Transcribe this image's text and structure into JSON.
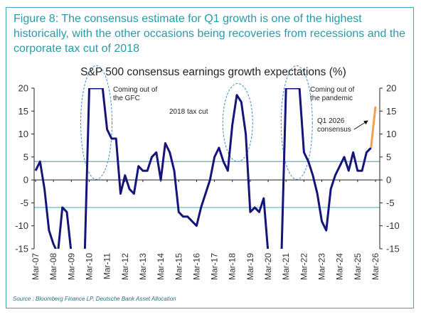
{
  "figure_caption": "Figure 8: The consensus estimate for Q1 growth is one of the highest historically, with the other occasions being recoveries from recessions and the corporate tax cut of 2018",
  "source": "Source : Bloomberg Finance LP, Deutsche Bank Asset Allocation",
  "colors": {
    "accent": "#2a9aaa",
    "series": "#14147a",
    "estimate": "#f0a050",
    "refline": "#5bbfcf",
    "ellipse": "#3b8fc7"
  },
  "chart_data": {
    "type": "line",
    "title": "S&P 500 consensus earnings growth expectations (%)",
    "ylim": [
      -15,
      20
    ],
    "yticks": [
      "20",
      "15",
      "10",
      "5",
      "0",
      "-5",
      "-10",
      "-15"
    ],
    "xticks": [
      "Mar-07",
      "Mar-08",
      "Mar-09",
      "Mar-10",
      "Mar-11",
      "Mar-12",
      "Mar-13",
      "Mar-14",
      "Mar-15",
      "Mar-16",
      "Mar-17",
      "Mar-18",
      "Mar-19",
      "Mar-20",
      "Mar-21",
      "Mar-22",
      "Mar-23",
      "Mar-24",
      "Mar-25",
      "Mar-26"
    ],
    "reference_lines": [
      4,
      -6
    ],
    "annotations": [
      {
        "text_lines": [
          "Coming out of",
          "the GFC"
        ]
      },
      {
        "text_lines": [
          "2018 tax cut"
        ]
      },
      {
        "text_lines": [
          "Coming out of",
          "the pandemic"
        ]
      },
      {
        "text_lines": [
          "Q1 2026",
          "consensus"
        ]
      }
    ],
    "series": [
      {
        "values": [
          [
            2007.0,
            2
          ],
          [
            2007.25,
            4
          ],
          [
            2007.5,
            -2
          ],
          [
            2007.75,
            -11
          ],
          [
            2008.0,
            -14
          ],
          [
            2008.25,
            -16
          ],
          [
            2008.5,
            -6
          ],
          [
            2008.75,
            -7
          ],
          [
            2009.0,
            -16
          ],
          [
            2009.25,
            -16
          ],
          [
            2009.5,
            -16
          ],
          [
            2009.75,
            -16
          ],
          [
            2010.0,
            20
          ],
          [
            2010.25,
            20
          ],
          [
            2010.5,
            20
          ],
          [
            2010.75,
            20
          ],
          [
            2011.0,
            11
          ],
          [
            2011.25,
            9
          ],
          [
            2011.5,
            9
          ],
          [
            2011.75,
            -3
          ],
          [
            2012.0,
            1
          ],
          [
            2012.25,
            -2
          ],
          [
            2012.5,
            -3
          ],
          [
            2012.75,
            3
          ],
          [
            2013.0,
            2
          ],
          [
            2013.25,
            2
          ],
          [
            2013.5,
            5
          ],
          [
            2013.75,
            6
          ],
          [
            2014.0,
            0
          ],
          [
            2014.25,
            8
          ],
          [
            2014.5,
            6
          ],
          [
            2014.75,
            2
          ],
          [
            2015.0,
            -7
          ],
          [
            2015.25,
            -8
          ],
          [
            2015.5,
            -8
          ],
          [
            2015.75,
            -9
          ],
          [
            2016.0,
            -10
          ],
          [
            2016.25,
            -6
          ],
          [
            2016.5,
            -3
          ],
          [
            2016.75,
            0
          ],
          [
            2017.0,
            5
          ],
          [
            2017.25,
            7
          ],
          [
            2017.5,
            4
          ],
          [
            2017.75,
            2
          ],
          [
            2018.0,
            12
          ],
          [
            2018.25,
            18.5
          ],
          [
            2018.5,
            17
          ],
          [
            2018.75,
            10
          ],
          [
            2019.0,
            -7
          ],
          [
            2019.25,
            -6
          ],
          [
            2019.5,
            -7
          ],
          [
            2019.75,
            -4
          ],
          [
            2020.0,
            -16
          ],
          [
            2020.25,
            -16
          ],
          [
            2020.5,
            -16
          ],
          [
            2020.75,
            -16
          ],
          [
            2021.0,
            20
          ],
          [
            2021.25,
            20
          ],
          [
            2021.5,
            20
          ],
          [
            2021.75,
            20
          ],
          [
            2022.0,
            6
          ],
          [
            2022.25,
            4
          ],
          [
            2022.5,
            1
          ],
          [
            2022.75,
            -3
          ],
          [
            2023.0,
            -9
          ],
          [
            2023.25,
            -11
          ],
          [
            2023.5,
            -2
          ],
          [
            2023.75,
            1
          ],
          [
            2024.0,
            3
          ],
          [
            2024.25,
            5
          ],
          [
            2024.5,
            2
          ],
          [
            2024.75,
            6
          ],
          [
            2025.0,
            2
          ],
          [
            2025.25,
            2
          ],
          [
            2025.5,
            6
          ],
          [
            2025.75,
            7
          ]
        ]
      },
      {
        "values": [
          [
            2025.75,
            7
          ],
          [
            2026.0,
            16
          ]
        ]
      }
    ]
  }
}
